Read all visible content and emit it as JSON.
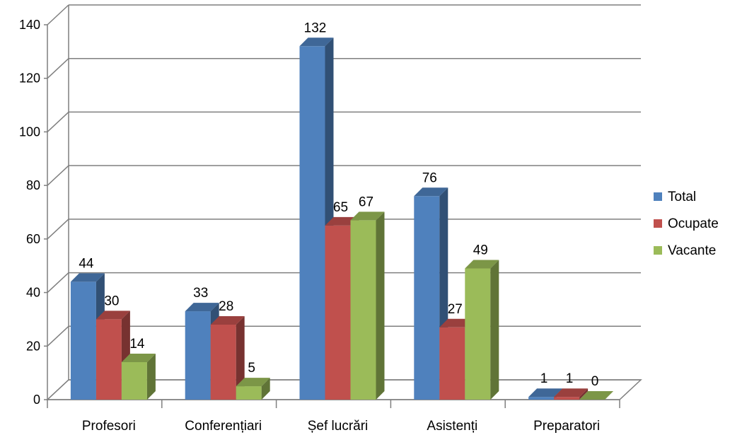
{
  "chart_data": {
    "type": "bar",
    "title": "",
    "xlabel": "",
    "ylabel": "",
    "ylim": [
      0,
      140
    ],
    "yticks": [
      0,
      20,
      40,
      60,
      80,
      100,
      120,
      140
    ],
    "grid": true,
    "legend_position": "right",
    "categories": [
      "Profesori",
      "Conferențiari",
      "Șef lucrări",
      "Asistenți",
      "Preparatori"
    ],
    "series": [
      {
        "name": "Total",
        "values": [
          44,
          33,
          132,
          76,
          1
        ],
        "color": "#4F81BD"
      },
      {
        "name": "Ocupate",
        "values": [
          30,
          28,
          65,
          27,
          1
        ],
        "color": "#C0504D"
      },
      {
        "name": "Vacante",
        "values": [
          14,
          5,
          67,
          49,
          0
        ],
        "color": "#9BBB59"
      }
    ]
  }
}
